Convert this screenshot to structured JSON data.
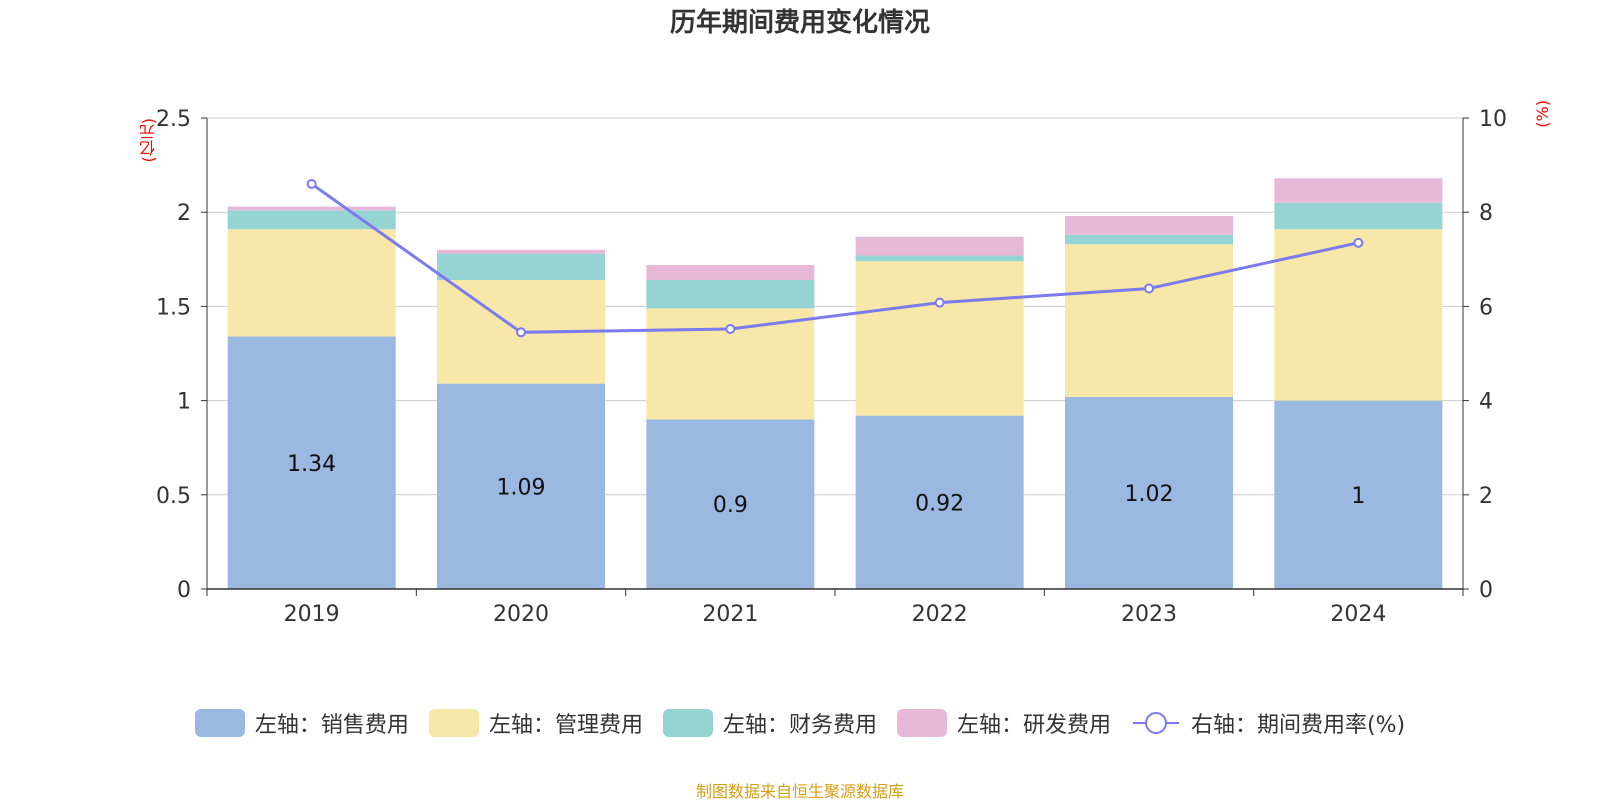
{
  "title": "历年期间费用变化情况",
  "left_unit": "(亿元)",
  "right_unit": "(%)",
  "source": "制图数据来自恒生聚源数据库",
  "colors": {
    "sales": "#9bb8e1",
    "management": "#f7e7a8",
    "finance": "#96d4d4",
    "rd": "#e8b8d8",
    "rate_line": "#7b7bee"
  },
  "chart_data": {
    "type": "bar",
    "stacked": true,
    "categories": [
      "2019",
      "2020",
      "2021",
      "2022",
      "2023",
      "2024"
    ],
    "left_axis": {
      "ylim": [
        0,
        2.5
      ],
      "ticks": [
        "0",
        "0.5",
        "1",
        "1.5",
        "2",
        "2.5"
      ]
    },
    "right_axis": {
      "ylim": [
        0,
        10
      ],
      "ticks": [
        "0",
        "2",
        "4",
        "6",
        "8",
        "10"
      ]
    },
    "series": [
      {
        "name": "左轴：销售费用",
        "key": "sales",
        "axis": "left",
        "type": "bar",
        "values": [
          1.34,
          1.09,
          0.9,
          0.92,
          1.02,
          1.0
        ],
        "labels": [
          "1.34",
          "1.09",
          "0.9",
          "0.92",
          "1.02",
          "1"
        ]
      },
      {
        "name": "左轴：管理费用",
        "key": "management",
        "axis": "left",
        "type": "bar",
        "values": [
          0.57,
          0.55,
          0.59,
          0.82,
          0.81,
          0.91
        ]
      },
      {
        "name": "左轴：财务费用",
        "key": "finance",
        "axis": "left",
        "type": "bar",
        "values": [
          0.1,
          0.14,
          0.15,
          0.03,
          0.05,
          0.14
        ]
      },
      {
        "name": "左轴：研发费用",
        "key": "rd",
        "axis": "left",
        "type": "bar",
        "values": [
          0.02,
          0.02,
          0.08,
          0.1,
          0.1,
          0.13
        ]
      },
      {
        "name": "右轴：期间费用率(%)",
        "key": "rate_line",
        "axis": "right",
        "type": "line",
        "values": [
          8.6,
          5.45,
          5.52,
          6.08,
          6.38,
          7.35
        ]
      }
    ],
    "legend_position": "bottom",
    "grid": true
  }
}
